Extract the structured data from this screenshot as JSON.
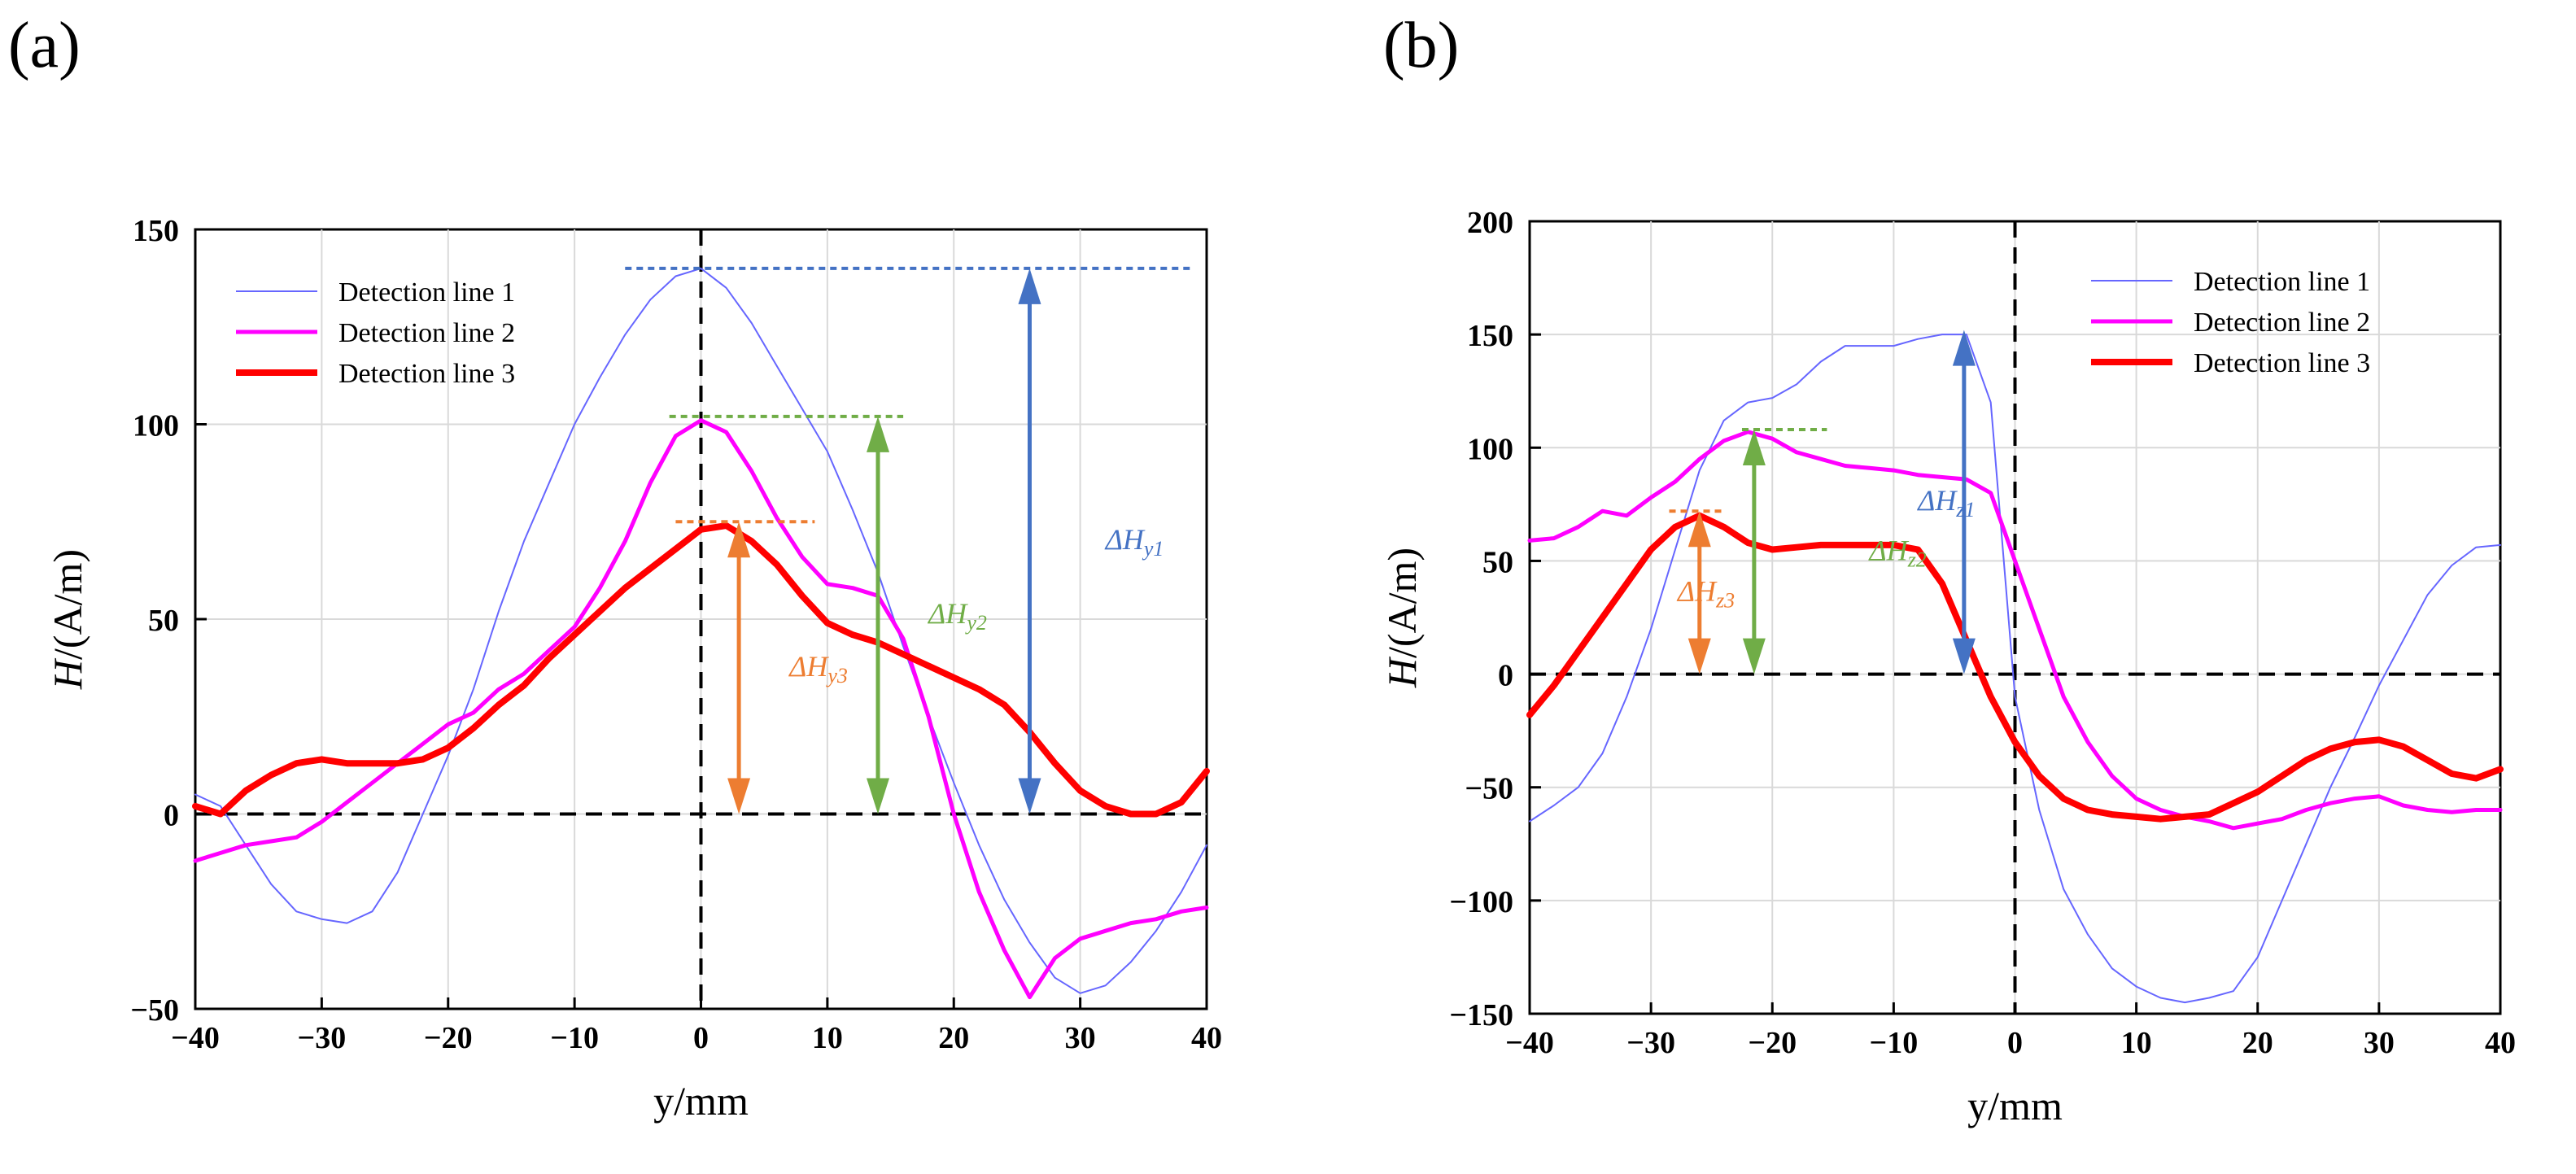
{
  "colors": {
    "line1": "#6666ff",
    "line2": "#ff00ff",
    "line3": "#ff0000",
    "blue_annot": "#4472c4",
    "green_annot": "#70ad47",
    "orange_annot": "#ed7d31"
  },
  "chart_data": [
    {
      "panel": "(a)",
      "type": "line",
      "xlabel": "y/mm",
      "ylabel": "H/(A/m)",
      "xlim": [
        -40,
        40
      ],
      "ylim": [
        -50,
        150
      ],
      "xticks": [
        -40,
        -30,
        -20,
        -10,
        0,
        10,
        20,
        30,
        40
      ],
      "xtick_labels": [
        "−40",
        "−30",
        "−20",
        "−10",
        "0",
        "10",
        "20",
        "30",
        "40"
      ],
      "yticks": [
        -50,
        0,
        50,
        100,
        150
      ],
      "ytick_labels": [
        "−50",
        "0",
        "50",
        "100",
        "150"
      ],
      "grid": true,
      "legend_position": "top-left",
      "legend": [
        "Detection line 1",
        "Detection line 2",
        "Detection line 3"
      ],
      "series": [
        {
          "name": "Detection line 1",
          "x": [
            -40,
            -38,
            -36,
            -34,
            -32,
            -30,
            -28,
            -26,
            -24,
            -22,
            -20,
            -18,
            -16,
            -14,
            -12,
            -10,
            -8,
            -6,
            -4,
            -2,
            0,
            2,
            4,
            6,
            8,
            10,
            12,
            14,
            16,
            18,
            20,
            22,
            24,
            26,
            28,
            30,
            32,
            34,
            36,
            38,
            40
          ],
          "values": [
            5,
            2,
            -8,
            -18,
            -25,
            -27,
            -28,
            -25,
            -15,
            0,
            15,
            32,
            52,
            70,
            85,
            100,
            112,
            123,
            132,
            138,
            140,
            135,
            126,
            115,
            104,
            93,
            78,
            62,
            43,
            25,
            8,
            -8,
            -22,
            -33,
            -42,
            -46,
            -44,
            -38,
            -30,
            -20,
            -8
          ]
        },
        {
          "name": "Detection line 2",
          "x": [
            -40,
            -38,
            -36,
            -34,
            -32,
            -30,
            -28,
            -26,
            -24,
            -22,
            -20,
            -18,
            -16,
            -14,
            -12,
            -10,
            -8,
            -6,
            -4,
            -2,
            0,
            2,
            4,
            6,
            8,
            10,
            12,
            14,
            16,
            18,
            20,
            22,
            24,
            26,
            28,
            30,
            32,
            34,
            36,
            38,
            40
          ],
          "values": [
            -12,
            -10,
            -8,
            -7,
            -6,
            -2,
            3,
            8,
            13,
            18,
            23,
            26,
            32,
            36,
            42,
            48,
            58,
            70,
            85,
            97,
            101,
            98,
            88,
            76,
            66,
            59,
            58,
            56,
            45,
            25,
            0,
            -20,
            -35,
            -47,
            -37,
            -32,
            -30,
            -28,
            -27,
            -25,
            -24
          ]
        },
        {
          "name": "Detection line 3",
          "x": [
            -40,
            -38,
            -36,
            -34,
            -32,
            -30,
            -28,
            -26,
            -24,
            -22,
            -20,
            -18,
            -16,
            -14,
            -12,
            -10,
            -8,
            -6,
            -4,
            -2,
            0,
            2,
            4,
            6,
            8,
            10,
            12,
            14,
            16,
            18,
            20,
            22,
            24,
            26,
            28,
            30,
            32,
            34,
            36,
            38,
            40
          ],
          "values": [
            2,
            0,
            6,
            10,
            13,
            14,
            13,
            13,
            13,
            14,
            17,
            22,
            28,
            33,
            40,
            46,
            52,
            58,
            63,
            68,
            73,
            74,
            70,
            64,
            56,
            49,
            46,
            44,
            41,
            38,
            35,
            32,
            28,
            21,
            13,
            6,
            2,
            0,
            0,
            3,
            11
          ]
        }
      ],
      "annotations": [
        {
          "label": "ΔH",
          "sub": "y1",
          "x": 26,
          "y_low": 0,
          "y_high": 140,
          "ref_from": -6,
          "ref_to": 39,
          "color": "blue_annot",
          "text_x": 32
        },
        {
          "label": "ΔH",
          "sub": "y2",
          "x": 14,
          "y_low": 0,
          "y_high": 102,
          "ref_from": -2.5,
          "ref_to": 16,
          "color": "green_annot",
          "text_x": 18
        },
        {
          "label": "ΔH",
          "sub": "y3",
          "x": 3,
          "y_low": 0,
          "y_high": 75,
          "ref_from": -2,
          "ref_to": 9,
          "color": "orange_annot",
          "text_x": 7
        }
      ]
    },
    {
      "panel": "(b)",
      "type": "line",
      "xlabel": "y/mm",
      "ylabel": "H/(A/m)",
      "xlim": [
        -40,
        40
      ],
      "ylim": [
        -150,
        200
      ],
      "xticks": [
        -40,
        -30,
        -20,
        -10,
        0,
        10,
        20,
        30,
        40
      ],
      "xtick_labels": [
        "−40",
        "−30",
        "−20",
        "−10",
        "0",
        "10",
        "20",
        "30",
        "40"
      ],
      "yticks": [
        -150,
        -100,
        -50,
        0,
        50,
        100,
        150,
        200
      ],
      "ytick_labels": [
        "−150",
        "−100",
        "−50",
        "0",
        "50",
        "100",
        "150",
        "200"
      ],
      "grid": true,
      "legend_position": "top-right",
      "legend": [
        "Detection line 1",
        "Detection line 2",
        "Detection line 3"
      ],
      "series": [
        {
          "name": "Detection line 1",
          "x": [
            -40,
            -38,
            -36,
            -34,
            -32,
            -30,
            -28,
            -26,
            -24,
            -22,
            -20,
            -18,
            -16,
            -14,
            -12,
            -10,
            -8,
            -6,
            -4,
            -2,
            0,
            2,
            4,
            6,
            8,
            10,
            12,
            14,
            16,
            18,
            20,
            22,
            24,
            26,
            28,
            30,
            32,
            34,
            36,
            38,
            40
          ],
          "values": [
            -65,
            -58,
            -50,
            -35,
            -10,
            20,
            55,
            90,
            112,
            120,
            122,
            128,
            138,
            145,
            145,
            145,
            148,
            150,
            150,
            120,
            -10,
            -60,
            -95,
            -115,
            -130,
            -138,
            -143,
            -145,
            -143,
            -140,
            -125,
            -100,
            -75,
            -50,
            -28,
            -5,
            15,
            35,
            48,
            56,
            57
          ]
        },
        {
          "name": "Detection line 2",
          "x": [
            -40,
            -38,
            -36,
            -34,
            -32,
            -30,
            -28,
            -26,
            -24,
            -22,
            -20,
            -18,
            -16,
            -14,
            -12,
            -10,
            -8,
            -6,
            -4,
            -2,
            0,
            2,
            4,
            6,
            8,
            10,
            12,
            14,
            16,
            18,
            20,
            22,
            24,
            26,
            28,
            30,
            32,
            34,
            36,
            38,
            40
          ],
          "values": [
            59,
            60,
            65,
            72,
            70,
            78,
            85,
            95,
            103,
            107,
            104,
            98,
            95,
            92,
            91,
            90,
            88,
            87,
            86,
            80,
            50,
            20,
            -10,
            -30,
            -45,
            -55,
            -60,
            -63,
            -65,
            -68,
            -66,
            -64,
            -60,
            -57,
            -55,
            -54,
            -58,
            -60,
            -61,
            -60,
            -60
          ]
        },
        {
          "name": "Detection line 3",
          "x": [
            -40,
            -38,
            -36,
            -34,
            -32,
            -30,
            -28,
            -26,
            -24,
            -22,
            -20,
            -18,
            -16,
            -14,
            -12,
            -10,
            -8,
            -6,
            -4,
            -2,
            0,
            2,
            4,
            6,
            8,
            10,
            12,
            14,
            16,
            18,
            20,
            22,
            24,
            26,
            28,
            30,
            32,
            34,
            36,
            38,
            40
          ],
          "values": [
            -18,
            -5,
            10,
            25,
            40,
            55,
            65,
            70,
            65,
            58,
            55,
            56,
            57,
            57,
            57,
            57,
            55,
            40,
            15,
            -10,
            -30,
            -45,
            -55,
            -60,
            -62,
            -63,
            -64,
            -63,
            -62,
            -57,
            -52,
            -45,
            -38,
            -33,
            -30,
            -29,
            -32,
            -38,
            -44,
            -46,
            -42
          ]
        }
      ],
      "annotations": [
        {
          "label": "ΔH",
          "sub": "z1",
          "x": -4.2,
          "y_low": 0,
          "y_high": 152,
          "ref_from": null,
          "ref_to": null,
          "color": "blue_annot",
          "text_x": -8
        },
        {
          "label": "ΔH",
          "sub": "z2",
          "x": -21.5,
          "y_low": 0,
          "y_high": 108,
          "ref_from": -22.5,
          "ref_to": -15.5,
          "color": "green_annot",
          "text_x": -12
        },
        {
          "label": "ΔH",
          "sub": "z3",
          "x": -26,
          "y_low": 0,
          "y_high": 72,
          "ref_from": -28.5,
          "ref_to": -24,
          "color": "orange_annot",
          "text_x": -27.8
        }
      ]
    }
  ]
}
